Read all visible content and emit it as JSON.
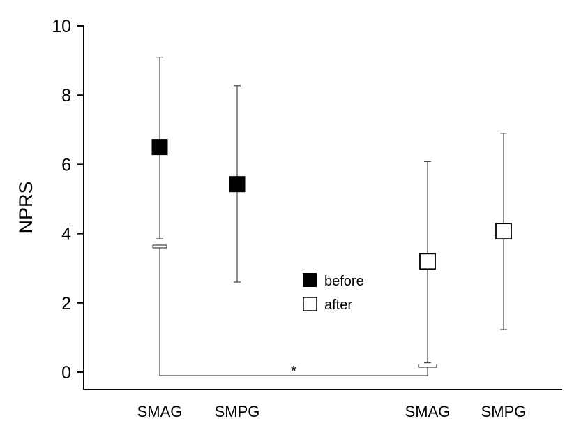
{
  "chart_data": {
    "type": "scatter",
    "title": "",
    "xlabel": "",
    "ylabel": "NPRS",
    "ylim": [
      0,
      10
    ],
    "yticks": [
      0,
      2,
      4,
      6,
      8,
      10
    ],
    "categories": [
      "SMAG",
      "SMPG",
      "SMAG",
      "SMPG"
    ],
    "series": [
      {
        "name": "before",
        "color": "#000000",
        "fill": "filled",
        "points": [
          {
            "category_index": 0,
            "mean": 6.5,
            "upper": 9.1,
            "lower": 3.85
          },
          {
            "category_index": 1,
            "mean": 5.43,
            "upper": 8.27,
            "lower": 2.6
          }
        ]
      },
      {
        "name": "after",
        "color": "#000000",
        "fill": "open",
        "points": [
          {
            "category_index": 2,
            "mean": 3.2,
            "upper": 6.08,
            "lower": 0.27
          },
          {
            "category_index": 3,
            "mean": 4.07,
            "upper": 6.9,
            "lower": 1.23
          }
        ]
      }
    ],
    "significance": {
      "from_index": 0,
      "to_index": 2,
      "label": "*"
    },
    "legend": {
      "placement": "center",
      "entries": [
        "before",
        "after"
      ]
    }
  }
}
